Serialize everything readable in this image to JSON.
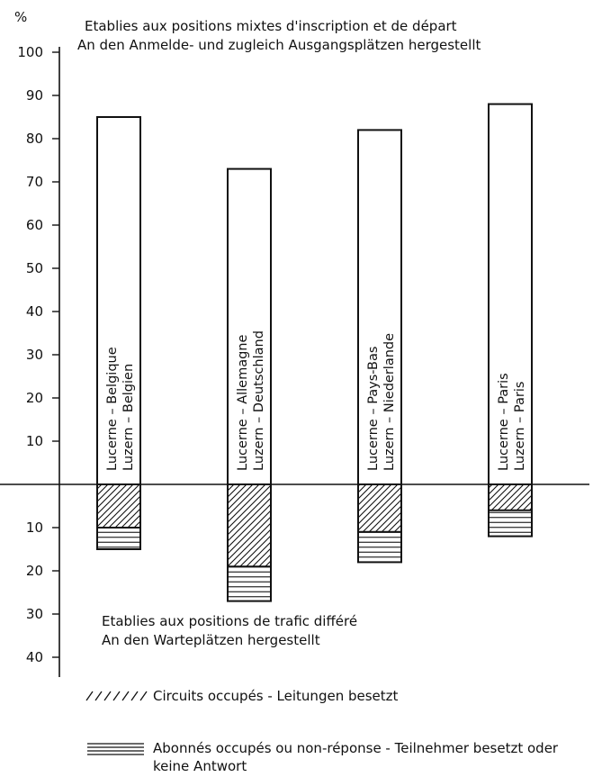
{
  "chart_data": {
    "type": "bar",
    "y_unit": "%",
    "upper_title": [
      "Etablies aux positions mixtes d'inscription et de départ",
      "An den Anmelde- und zugleich Ausgangsplätzen hergestellt"
    ],
    "lower_title": [
      "Etablies aux positions de trafic différé",
      "An den Warteplätzen hergestellt"
    ],
    "y_ticks_upper": [
      10,
      20,
      30,
      40,
      50,
      60,
      70,
      80,
      90,
      100
    ],
    "y_ticks_lower": [
      10,
      20,
      30,
      40
    ],
    "ylim": [
      -40,
      100
    ],
    "categories": [
      [
        "Lucerne – Belgique",
        "Luzern – Belgien"
      ],
      [
        "Lucerne – Allemagne",
        "Luzern – Deutschland"
      ],
      [
        "Lucerne – Pays-Bas",
        "Luzern – Niederlande"
      ],
      [
        "Lucerne – Paris",
        "Luzern – Paris"
      ]
    ],
    "series": [
      {
        "values": [
          85,
          73,
          82,
          88
        ]
      },
      {
        "name": "Circuits occupés - Leitungen besetzt",
        "pattern": "diagonal-hatch",
        "values": [
          10,
          19,
          11,
          6
        ]
      },
      {
        "name": "Abonnés occupés ou non-réponse - Teilnehmer besetzt oder keine Antwort",
        "pattern": "horizontal-lines",
        "values": [
          5,
          8,
          7,
          6
        ]
      }
    ],
    "legend": {
      "position": "bottom",
      "items": [
        {
          "pattern": "diagonal-hatch",
          "lines": [
            "Circuits occupés - Leitungen besetzt"
          ]
        },
        {
          "pattern": "horizontal-lines",
          "lines": [
            "Abonnés occupés ou non-réponse - Teilnehmer besetzt oder",
            "keine Antwort"
          ]
        }
      ]
    },
    "grid": false,
    "colors": {
      "ink": "#111111",
      "background": "#ffffff"
    }
  }
}
